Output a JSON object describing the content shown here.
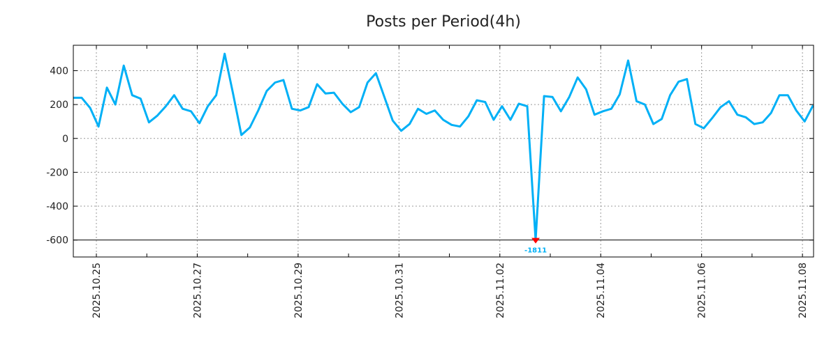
{
  "chart_data": {
    "type": "line",
    "title": "Posts per Period(4h)",
    "xlabel": "",
    "ylabel": "",
    "x_unit": "days since 2025.10.25",
    "x_start": -0.457,
    "x_step": 0.16667,
    "xlim": [
      -0.457,
      14.22
    ],
    "ylim": [
      -700,
      550
    ],
    "grid": true,
    "line_color": "#00b0f6",
    "marker_color": "#ff0000",
    "yticks": [
      400,
      200,
      0,
      -200,
      -400,
      -600
    ],
    "ytick_labels": [
      "400",
      "200",
      "0",
      "-200",
      "-400",
      "-600"
    ],
    "xticks": [
      0,
      2,
      4,
      6,
      8,
      10,
      12,
      14
    ],
    "xtick_labels": [
      "2025.10.25",
      "2025.10.27",
      "2025.10.29",
      "2025.10.31",
      "2025.11.02",
      "2025.11.04",
      "2025.11.06",
      "2025.11.08"
    ],
    "values": [
      240,
      240,
      180,
      70,
      300,
      200,
      430,
      255,
      235,
      95,
      135,
      190,
      255,
      175,
      160,
      90,
      190,
      255,
      500,
      265,
      20,
      65,
      165,
      280,
      330,
      345,
      175,
      165,
      185,
      320,
      265,
      270,
      205,
      155,
      185,
      330,
      385,
      245,
      105,
      45,
      85,
      175,
      145,
      165,
      110,
      80,
      70,
      130,
      225,
      215,
      110,
      190,
      110,
      205,
      190,
      -1811,
      250,
      245,
      160,
      245,
      360,
      290,
      140,
      160,
      175,
      260,
      460,
      220,
      200,
      85,
      115,
      255,
      335,
      350,
      85,
      60,
      120,
      185,
      220,
      140,
      125,
      85,
      95,
      150,
      255,
      255,
      165,
      100,
      195
    ],
    "annotation": {
      "index": 55,
      "label": "-1811",
      "clipped_to": -600
    }
  }
}
